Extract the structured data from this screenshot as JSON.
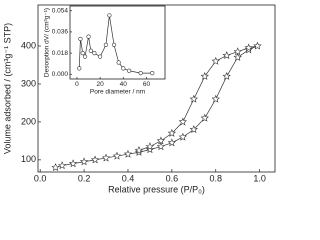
{
  "chart_data": [
    {
      "type": "line",
      "marker": "star",
      "color": "#333333",
      "xlabel": "Relative pressure (P/P₀)",
      "ylabel": "Volume adsorbed / (cm³g⁻¹ STP)",
      "x": [
        0.07,
        0.1,
        0.15,
        0.2,
        0.25,
        0.3,
        0.35,
        0.4,
        0.45,
        0.5,
        0.55,
        0.6,
        0.65,
        0.7,
        0.75,
        0.8,
        0.85,
        0.9,
        0.95,
        0.99,
        0.95,
        0.9,
        0.85,
        0.8,
        0.75,
        0.7,
        0.65,
        0.6,
        0.55,
        0.5,
        0.45
      ],
      "values": [
        80,
        85,
        90,
        95,
        100,
        105,
        110,
        115,
        120,
        127,
        135,
        145,
        160,
        180,
        210,
        260,
        320,
        370,
        390,
        400,
        395,
        385,
        375,
        360,
        320,
        260,
        200,
        170,
        150,
        135,
        125
      ],
      "xlim": [
        -0.01,
        1.07
      ],
      "ylim": [
        68,
        508
      ],
      "xticks": [
        {
          "value": 0,
          "label": "0.0"
        },
        {
          "value": 0.2,
          "label": "0.2"
        },
        {
          "value": 0.4,
          "label": "0.4"
        },
        {
          "value": 0.6,
          "label": "0.6"
        },
        {
          "value": 0.8,
          "label": "0.8"
        },
        {
          "value": 1,
          "label": "1.0"
        }
      ],
      "yticks": [
        100,
        200,
        300,
        400
      ]
    },
    {
      "type": "line",
      "marker": "circle",
      "color": "#333333",
      "xlabel": "Pore diameter / nm",
      "ylabel": "Desorption dV/ (cm³g⁻¹)",
      "x": [
        2,
        3,
        5,
        7,
        10,
        12,
        15,
        20,
        25,
        28,
        32,
        36,
        40,
        45,
        55,
        65
      ],
      "values": [
        0.005,
        0.03,
        0.018,
        0.015,
        0.032,
        0.02,
        0.018,
        0.015,
        0.025,
        0.05,
        0.025,
        0.01,
        0.005,
        0.003,
        0.001,
        0.001
      ],
      "xlim": [
        -6,
        76
      ],
      "ylim": [
        -0.004,
        0.058
      ],
      "xticks": [
        0,
        20,
        40,
        60
      ],
      "yticks": [
        {
          "value": 0,
          "label": "0.000"
        },
        {
          "value": 0.018,
          "label": "0.018"
        },
        {
          "value": 0.036,
          "label": "0.036"
        },
        {
          "value": 0.054,
          "label": "0.054"
        }
      ]
    }
  ]
}
